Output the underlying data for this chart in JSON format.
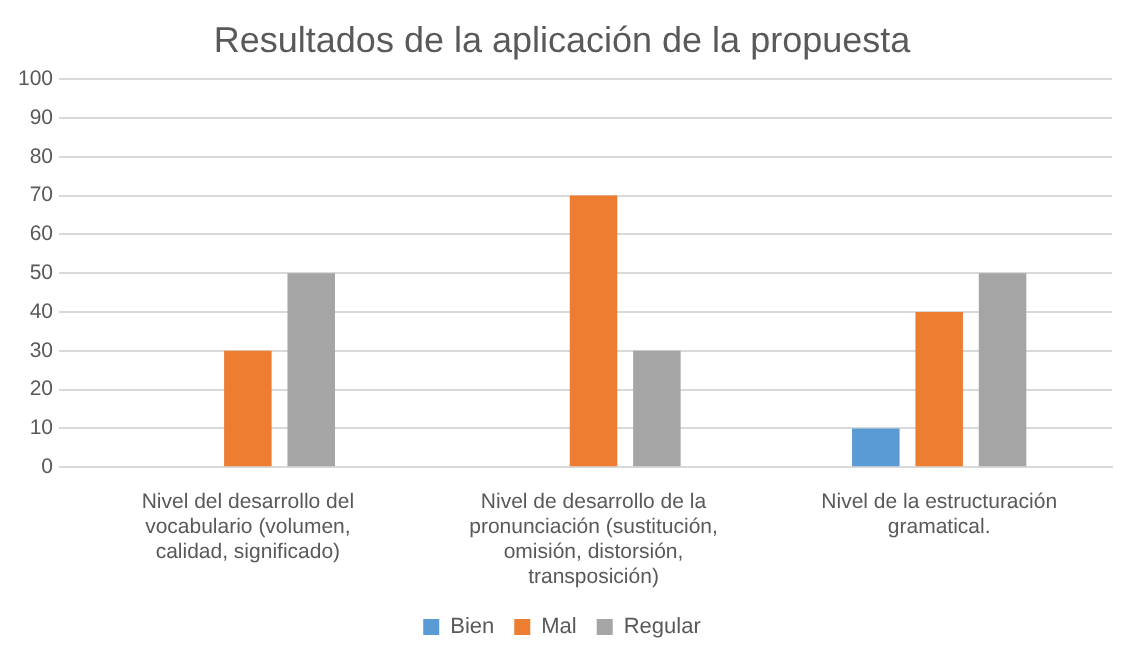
{
  "chart_data": {
    "type": "bar",
    "title": "Resultados de la aplicación de la propuesta",
    "categories": [
      "Nivel del desarrollo del vocabulario (volumen, calidad, significado)",
      "Nivel de desarrollo de la pronunciación (sustitución, omisión, distorsión, transposición)",
      "Nivel de la estructuración gramatical."
    ],
    "series": [
      {
        "name": "Bien",
        "color": "#5b9bd5",
        "values": [
          0,
          0,
          10
        ]
      },
      {
        "name": "Mal",
        "color": "#ed7d31",
        "values": [
          30,
          70,
          40
        ]
      },
      {
        "name": "Regular",
        "color": "#a5a5a5",
        "values": [
          50,
          30,
          50
        ]
      }
    ],
    "ylim": [
      0,
      100
    ],
    "yticks": [
      0,
      10,
      20,
      30,
      40,
      50,
      60,
      70,
      80,
      90,
      100
    ],
    "grid": "y",
    "legend": "bottom"
  }
}
